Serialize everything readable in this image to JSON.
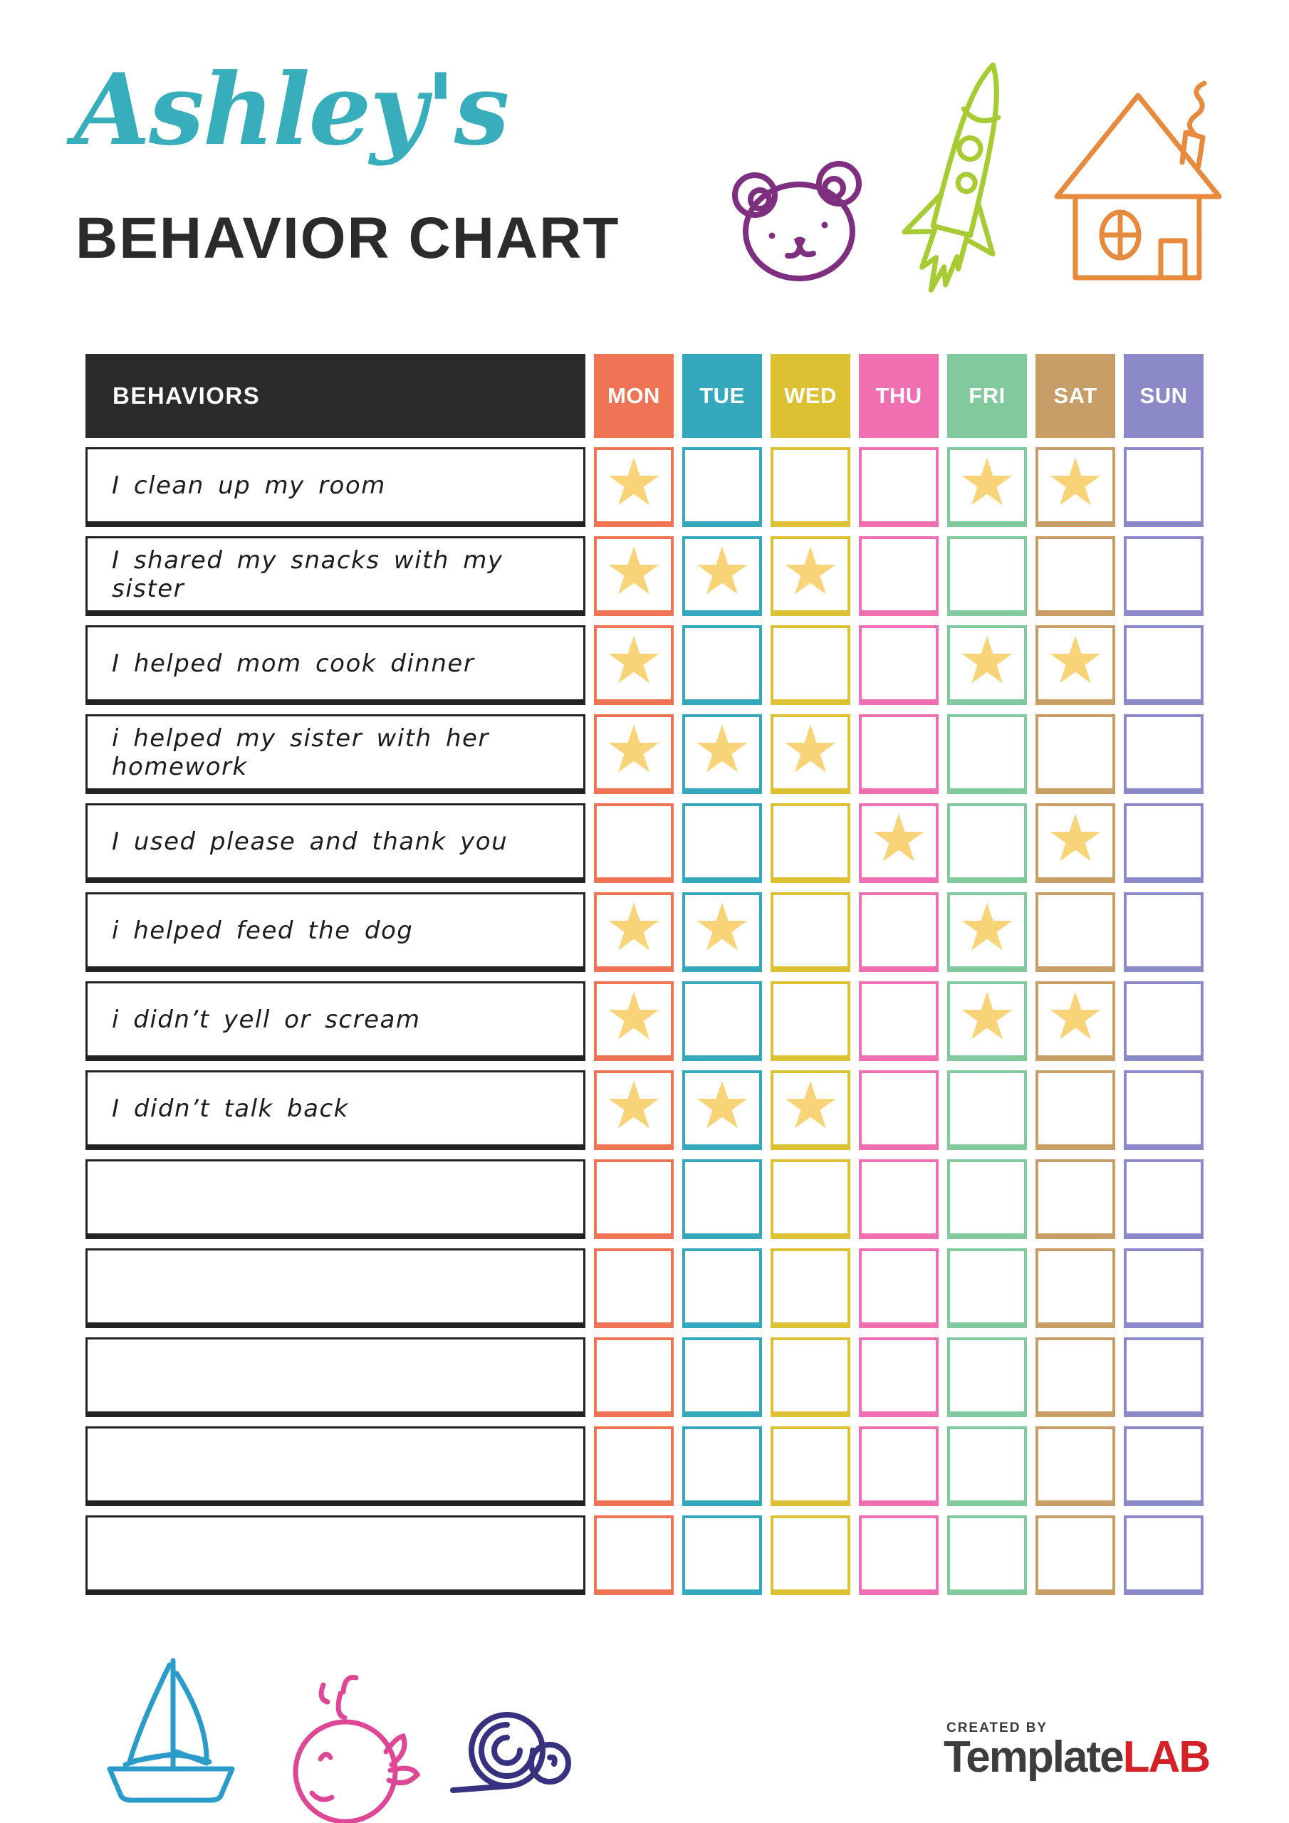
{
  "title": {
    "name": "Ashley's",
    "subtitle": "BEHAVIOR CHART",
    "name_color": "#38aebd",
    "subtitle_color": "#2b2b2b"
  },
  "header_icons": [
    {
      "name": "bear-icon",
      "color": "#7e2f7f"
    },
    {
      "name": "rocket-icon",
      "color": "#a7cb33"
    },
    {
      "name": "house-icon",
      "color": "#e78a3d"
    }
  ],
  "table": {
    "behaviors_header": "BEHAVIORS",
    "header_bg": "#2b2b2b",
    "header_text_color": "#ffffff",
    "star_color": "#f8d377",
    "days": [
      {
        "label": "MON",
        "color": "#ee7455"
      },
      {
        "label": "TUE",
        "color": "#35a8bc"
      },
      {
        "label": "WED",
        "color": "#dcc233"
      },
      {
        "label": "THU",
        "color": "#ef6fb0"
      },
      {
        "label": "FRI",
        "color": "#82c99d"
      },
      {
        "label": "SAT",
        "color": "#c79d68"
      },
      {
        "label": "SUN",
        "color": "#8b89c7"
      }
    ],
    "rows": [
      {
        "behavior": "I clean up my room",
        "stars": [
          "MON",
          "FRI",
          "SAT"
        ]
      },
      {
        "behavior": "I shared my snacks with my sister",
        "stars": [
          "MON",
          "TUE",
          "WED"
        ]
      },
      {
        "behavior": "I helped mom cook dinner",
        "stars": [
          "MON",
          "FRI",
          "SAT"
        ]
      },
      {
        "behavior": "i helped my sister with her homework",
        "stars": [
          "MON",
          "TUE",
          "WED"
        ]
      },
      {
        "behavior": "I used please and thank you",
        "stars": [
          "THU",
          "SAT"
        ]
      },
      {
        "behavior": "i helped feed the dog",
        "stars": [
          "MON",
          "TUE",
          "FRI"
        ]
      },
      {
        "behavior": "i didn’t yell or scream",
        "stars": [
          "MON",
          "FRI",
          "SAT"
        ]
      },
      {
        "behavior": "I didn’t talk back",
        "stars": [
          "MON",
          "TUE",
          "WED"
        ]
      },
      {
        "behavior": "",
        "stars": []
      },
      {
        "behavior": "",
        "stars": []
      },
      {
        "behavior": "",
        "stars": []
      },
      {
        "behavior": "",
        "stars": []
      },
      {
        "behavior": "",
        "stars": []
      }
    ]
  },
  "footer": {
    "icons": [
      {
        "name": "sailboat-icon",
        "color": "#2b9cc9"
      },
      {
        "name": "whale-icon",
        "color": "#de4795"
      },
      {
        "name": "snail-icon",
        "color": "#37327f"
      }
    ],
    "logo": {
      "created_by": "CREATED BY",
      "brand_dark": "Template",
      "brand_red": "LAB",
      "dark_color": "#3d3d3d",
      "red_color": "#d42027"
    }
  }
}
